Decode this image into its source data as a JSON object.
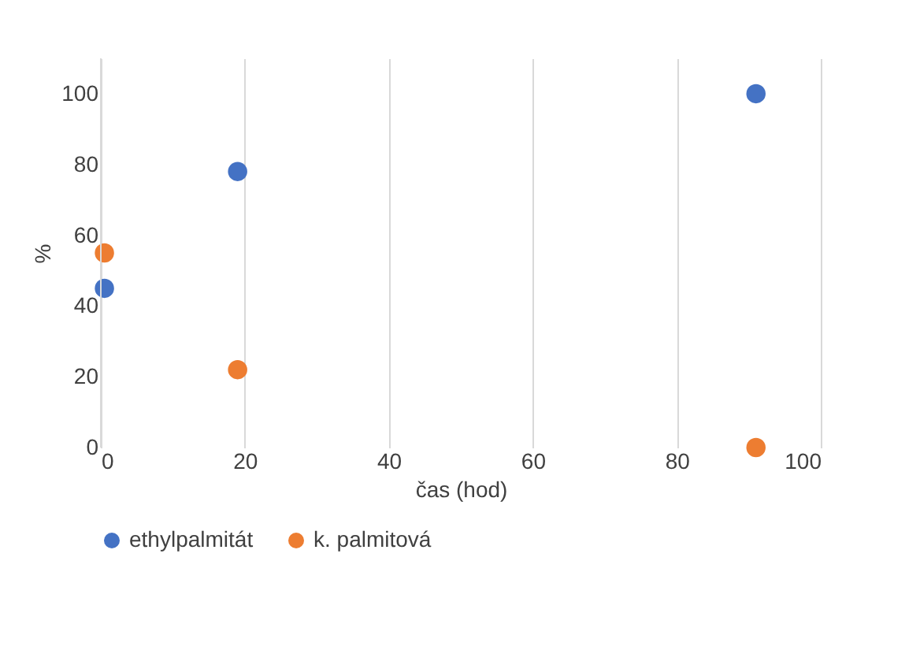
{
  "chart_data": {
    "type": "scatter",
    "xlabel": "čas (hod)",
    "ylabel": "%",
    "x": [
      0.5,
      19,
      91
    ],
    "series": [
      {
        "name": "ethylpalmitát",
        "color": "#4472c4",
        "values": [
          45,
          78,
          100
        ]
      },
      {
        "name": "k. palmitová",
        "color": "#ed7d31",
        "values": [
          55,
          22,
          0
        ]
      }
    ],
    "xlim": [
      0,
      100
    ],
    "xticks": [
      0,
      20,
      40,
      60,
      80,
      100
    ],
    "ylim": [
      0,
      110
    ],
    "yticks": [
      0,
      20,
      40,
      60,
      80,
      100
    ],
    "grid": "x",
    "legend": "bottom",
    "marker": "circle"
  }
}
